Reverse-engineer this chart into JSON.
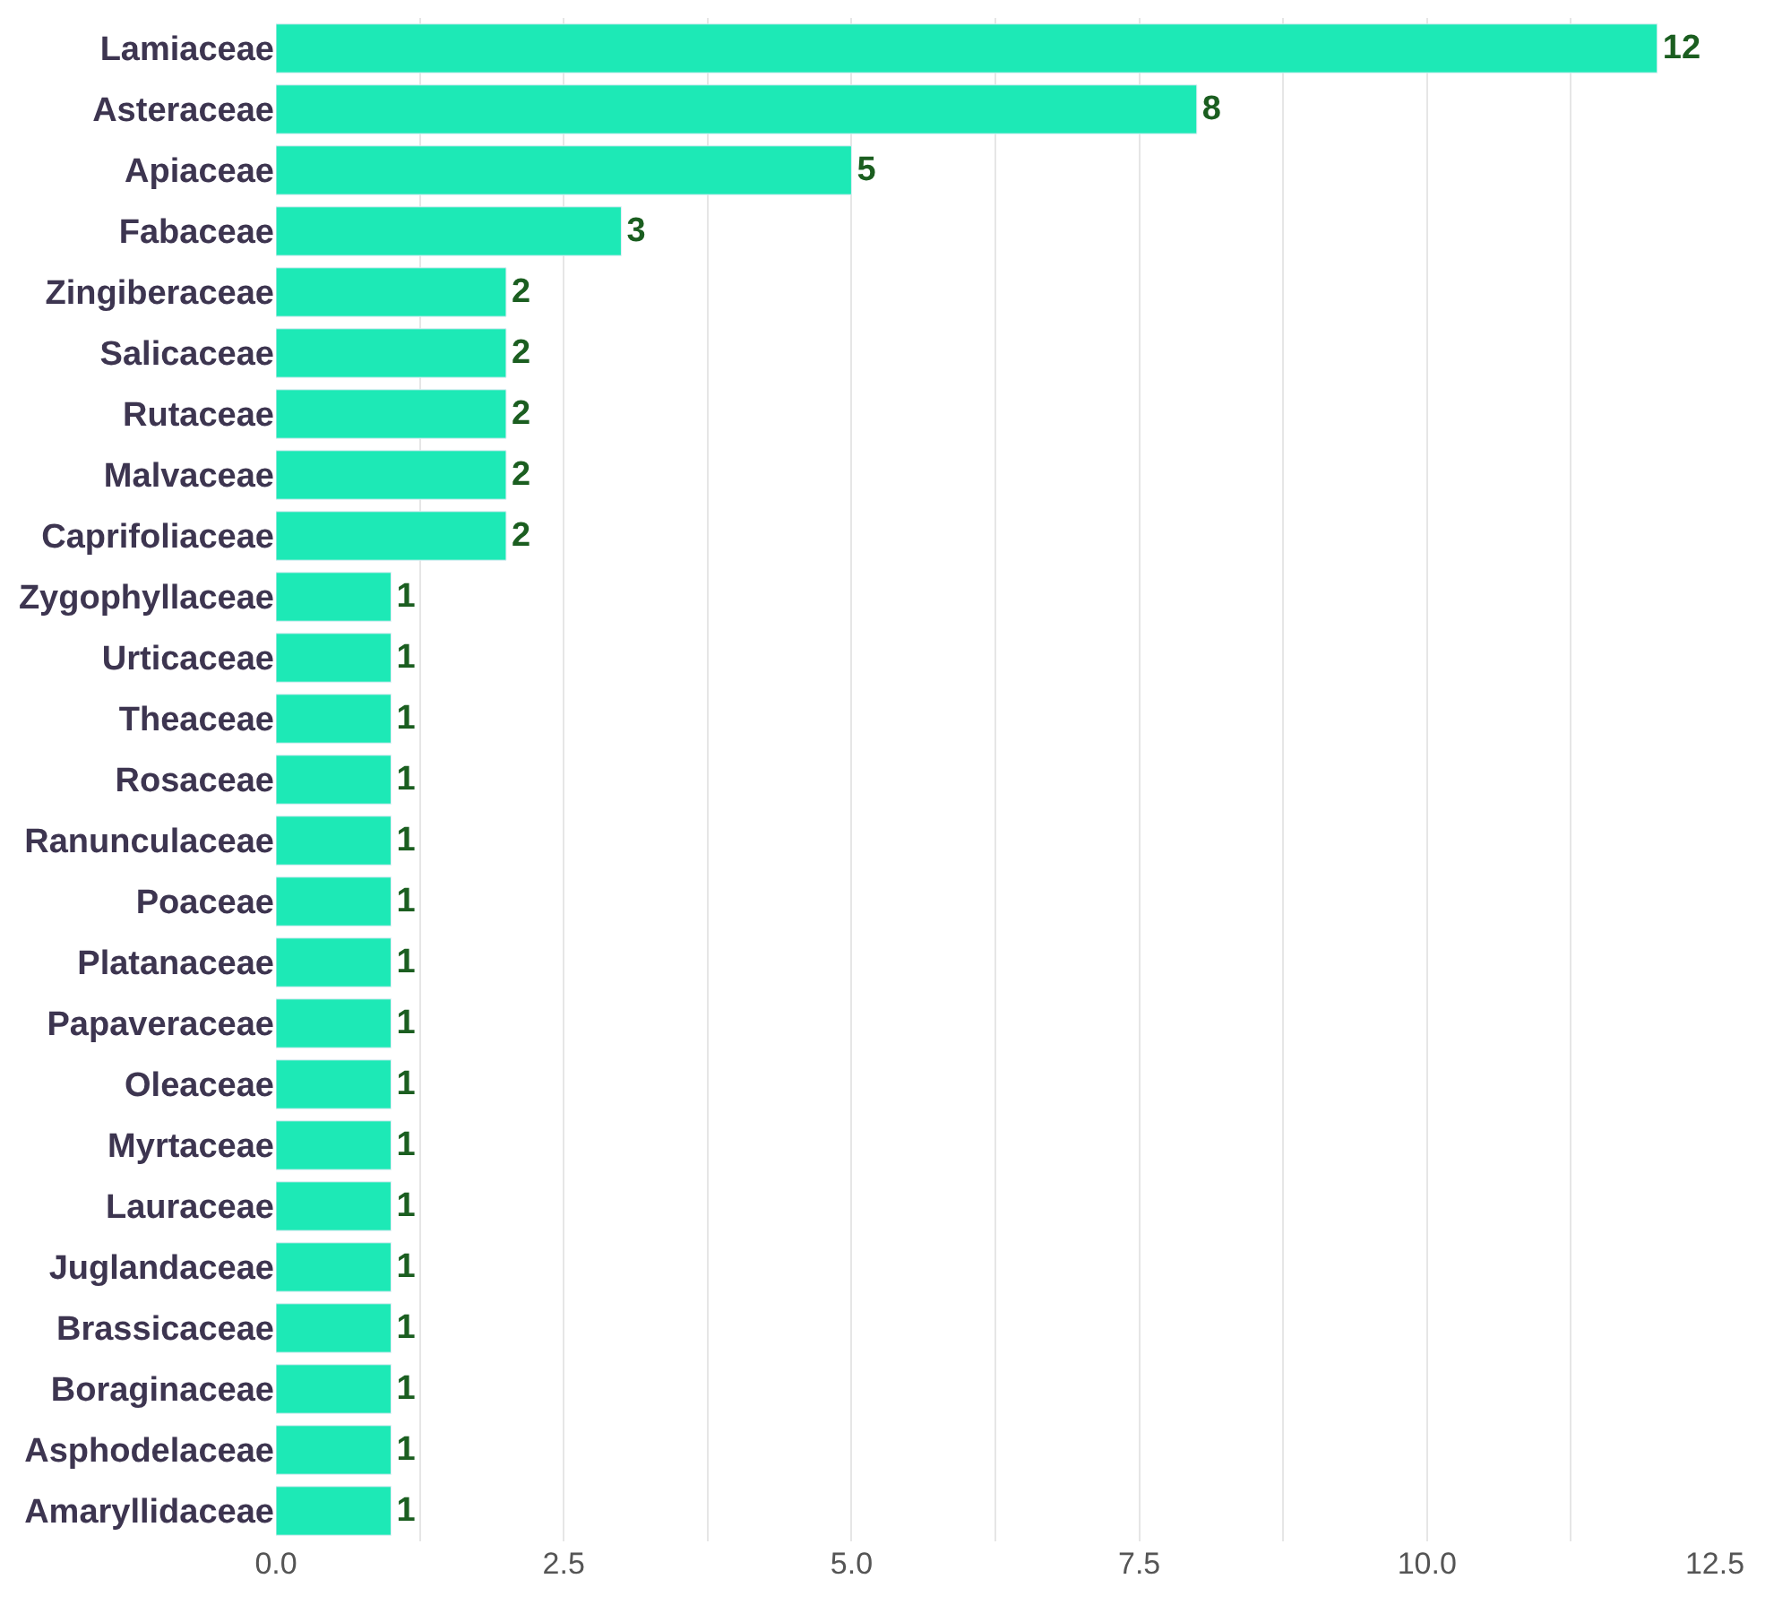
{
  "chart_data": {
    "type": "bar",
    "orientation": "horizontal",
    "categories": [
      "Lamiaceae",
      "Asteraceae",
      "Apiaceae",
      "Fabaceae",
      "Zingiberaceae",
      "Salicaceae",
      "Rutaceae",
      "Malvaceae",
      "Caprifoliaceae",
      "Zygophyllaceae",
      "Urticaceae",
      "Theaceae",
      "Rosaceae",
      "Ranunculaceae",
      "Poaceae",
      "Platanaceae",
      "Papaveraceae",
      "Oleaceae",
      "Myrtaceae",
      "Lauraceae",
      "Juglandaceae",
      "Brassicaceae",
      "Boraginaceae",
      "Asphodelaceae",
      "Amaryllidaceae"
    ],
    "values": [
      12,
      8,
      5,
      3,
      2,
      2,
      2,
      2,
      2,
      1,
      1,
      1,
      1,
      1,
      1,
      1,
      1,
      1,
      1,
      1,
      1,
      1,
      1,
      1,
      1
    ],
    "color": "#1de9b6",
    "data_labels": true,
    "xlim": [
      0,
      12.5
    ],
    "xticks": [
      {
        "value": 0,
        "label": "0.0"
      },
      {
        "value": 1.25,
        "label": null
      },
      {
        "value": 2.5,
        "label": "2.5"
      },
      {
        "value": 3.75,
        "label": null
      },
      {
        "value": 5,
        "label": "5.0"
      },
      {
        "value": 6.25,
        "label": null
      },
      {
        "value": 7.5,
        "label": "7.5"
      },
      {
        "value": 8.75,
        "label": null
      },
      {
        "value": 10,
        "label": "10.0"
      },
      {
        "value": 11.25,
        "label": null
      },
      {
        "value": 12.5,
        "label": "12.5"
      }
    ],
    "grid": "x"
  }
}
